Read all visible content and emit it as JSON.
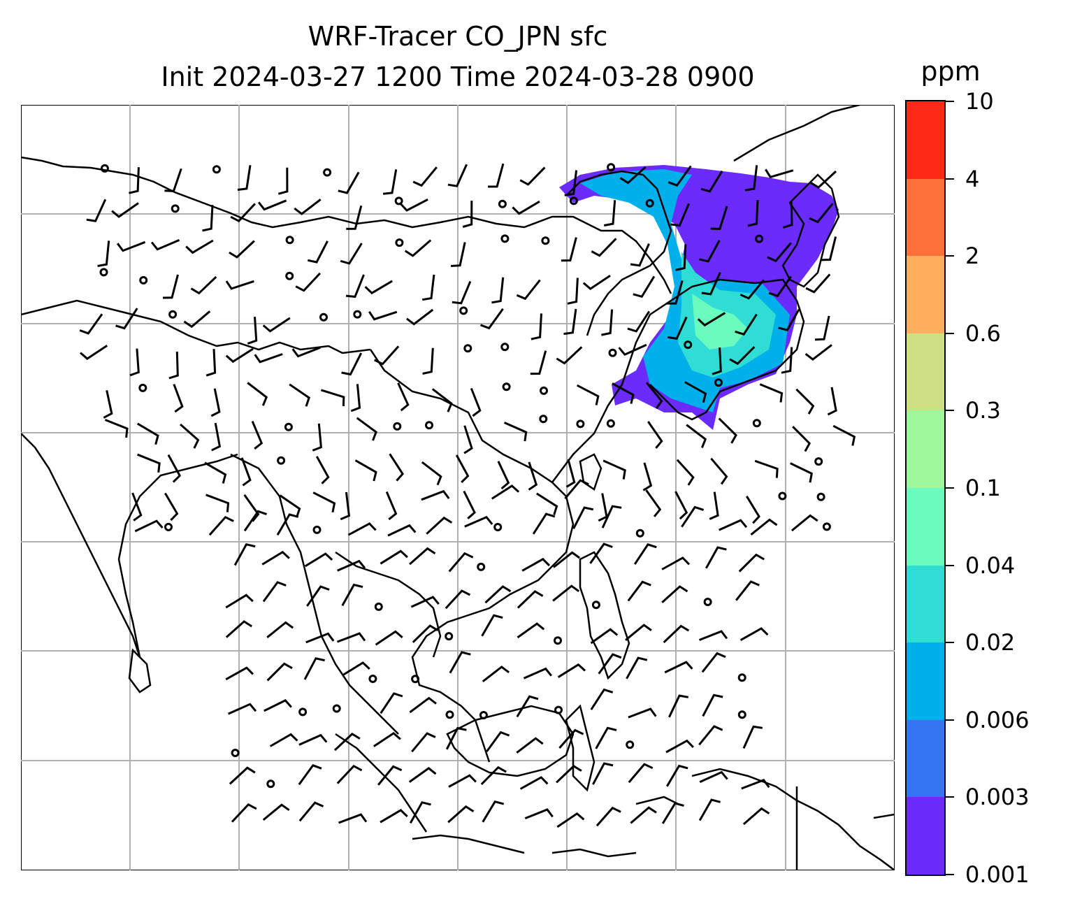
{
  "title": {
    "line1": "WRF-Tracer CO_JPN sfc",
    "line2": "Init 2024-03-27 1200 Time 2024-03-28 0900"
  },
  "colorbar": {
    "unit": "ppm",
    "levels": [
      "0.001",
      "0.003",
      "0.006",
      "0.02",
      "0.04",
      "0.1",
      "0.3",
      "0.6",
      "2",
      "4",
      "10"
    ],
    "colors": [
      "#6a2bfb",
      "#3574f3",
      "#00b0ea",
      "#2fddd4",
      "#6afbbf",
      "#9ef89b",
      "#cfe084",
      "#fdaf5e",
      "#fe7039",
      "#fc2a16"
    ]
  },
  "map": {
    "content": "surface CO tracer concentration with wind barbs over East and Southeast Asia",
    "gridlines": true,
    "plume_colors": {
      "outer": "#6a2bfb",
      "mid": "#00b0ea",
      "inner": "#2fddd4",
      "core": "#6afbbf"
    }
  }
}
